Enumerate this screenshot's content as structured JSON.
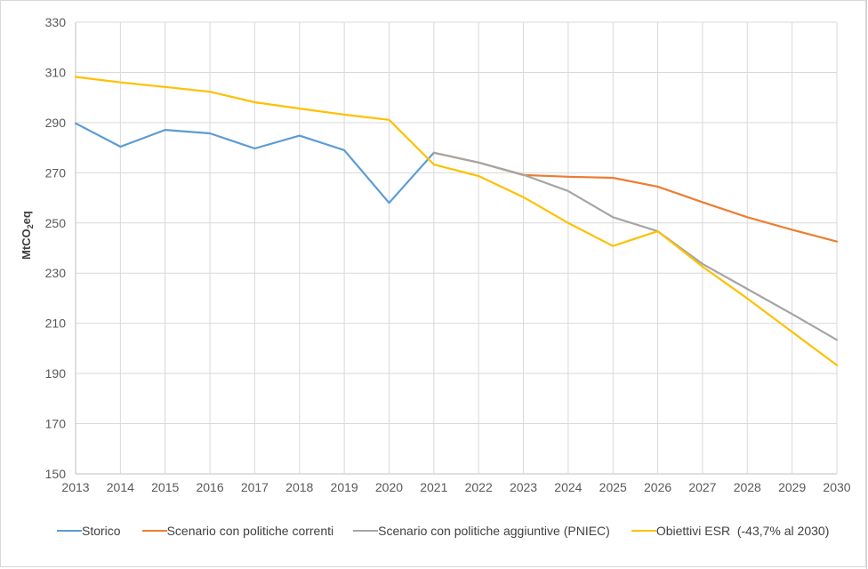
{
  "chart_data": {
    "type": "line",
    "title": "",
    "xlabel": "",
    "ylabel": "MtCO2eq",
    "ylabel_display": {
      "main": "MtCO",
      "sub": "2",
      "suffix": "eq"
    },
    "ylim": [
      150,
      330
    ],
    "yticks": [
      150,
      170,
      190,
      210,
      230,
      250,
      270,
      290,
      310,
      330
    ],
    "grid": true,
    "legend_position": "bottom",
    "x": [
      2013,
      2014,
      2015,
      2016,
      2017,
      2018,
      2019,
      2020,
      2021,
      2022,
      2023,
      2024,
      2025,
      2026,
      2027,
      2028,
      2029,
      2030
    ],
    "series": [
      {
        "name": "Storico",
        "color": "#5b9bd5",
        "values": [
          289.7,
          280.4,
          287.1,
          285.7,
          279.7,
          284.8,
          279.0,
          258.0,
          278.0,
          null,
          null,
          null,
          null,
          null,
          null,
          null,
          null,
          null
        ]
      },
      {
        "name": "Scenario con politiche correnti",
        "color": "#ed7d31",
        "values": [
          null,
          null,
          null,
          null,
          null,
          null,
          null,
          null,
          278.0,
          274.1,
          269.1,
          268.4,
          268.0,
          264.5,
          258.3,
          252.3,
          247.3,
          242.6
        ]
      },
      {
        "name": "Scenario con politiche aggiuntive (PNIEC)",
        "color": "#a5a5a5",
        "values": [
          null,
          null,
          null,
          null,
          null,
          null,
          null,
          null,
          278.0,
          274.1,
          269.2,
          262.7,
          252.3,
          246.7,
          233.7,
          223.7,
          213.7,
          203.4
        ]
      },
      {
        "name": "Obiettivi ESR  (-43,7% al 2030)",
        "color": "#ffc000",
        "values": [
          308.2,
          306.0,
          304.2,
          302.3,
          298.1,
          295.6,
          293.2,
          291.1,
          273.3,
          268.7,
          260.3,
          250.0,
          240.8,
          246.7,
          232.6,
          219.9,
          206.6,
          193.3
        ]
      }
    ]
  },
  "colors": {
    "grid": "#d9d9d9",
    "axis": "#bfbfbf",
    "tick_text": "#595959"
  }
}
